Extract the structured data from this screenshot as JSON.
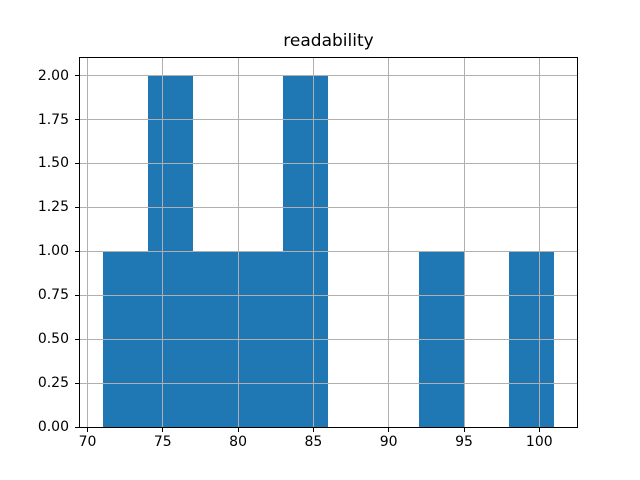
{
  "chart_data": {
    "type": "bar",
    "subtype": "histogram",
    "title": "readability",
    "xlabel": "",
    "ylabel": "",
    "bin_edges": [
      71,
      74,
      77,
      80,
      83,
      86,
      89,
      92,
      95,
      98,
      101
    ],
    "counts": [
      1,
      2,
      1,
      1,
      2,
      0,
      0,
      1,
      0,
      1
    ],
    "xlim": [
      69.5,
      102.5
    ],
    "ylim": [
      0,
      2.1
    ],
    "xticks": {
      "values": [
        70,
        75,
        80,
        85,
        90,
        95,
        100
      ],
      "labels": [
        "70",
        "75",
        "80",
        "85",
        "90",
        "95",
        "100"
      ]
    },
    "yticks": {
      "values": [
        0.0,
        0.25,
        0.5,
        0.75,
        1.0,
        1.25,
        1.5,
        1.75,
        2.0
      ],
      "labels": [
        "0.00",
        "0.25",
        "0.50",
        "0.75",
        "1.00",
        "1.25",
        "1.50",
        "1.75",
        "2.00"
      ]
    },
    "grid": true,
    "grid_above_bars": true,
    "legend": null,
    "colors": {
      "bar": "#1f77b4",
      "grid": "#b0b0b0",
      "spine": "#000000",
      "text": "#000000",
      "background": "#ffffff"
    }
  }
}
